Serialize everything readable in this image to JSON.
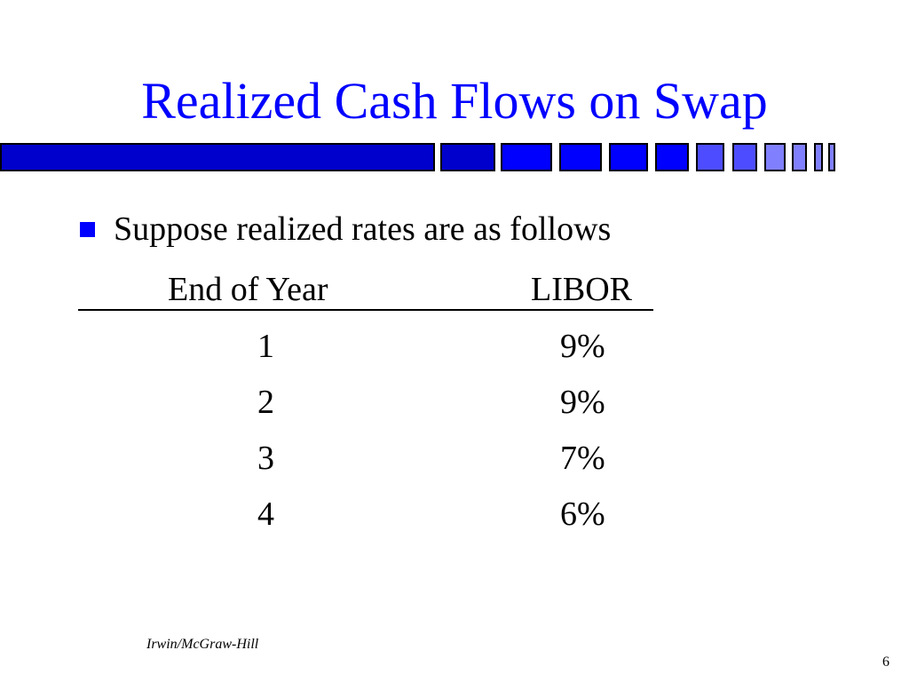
{
  "slide": {
    "title": "Realized Cash Flows on Swap",
    "bullet": "Suppose realized rates are as follows",
    "table": {
      "headers": {
        "year": "End of Year",
        "libor": "LIBOR"
      },
      "rows": [
        {
          "year": "1",
          "libor": "9%"
        },
        {
          "year": "2",
          "libor": "9%"
        },
        {
          "year": "3",
          "libor": "7%"
        },
        {
          "year": "4",
          "libor": "6%"
        }
      ]
    },
    "footer": {
      "publisher": "Irwin/McGraw-Hill",
      "page_number": "6"
    }
  },
  "colors": {
    "title": "#0000ff",
    "bar_dark": "#0000cc",
    "bar_mid": "#0000ff",
    "bar_light": "#4d4dff",
    "bar_lighter": "#8080ff",
    "bullet": "#0000ff"
  }
}
